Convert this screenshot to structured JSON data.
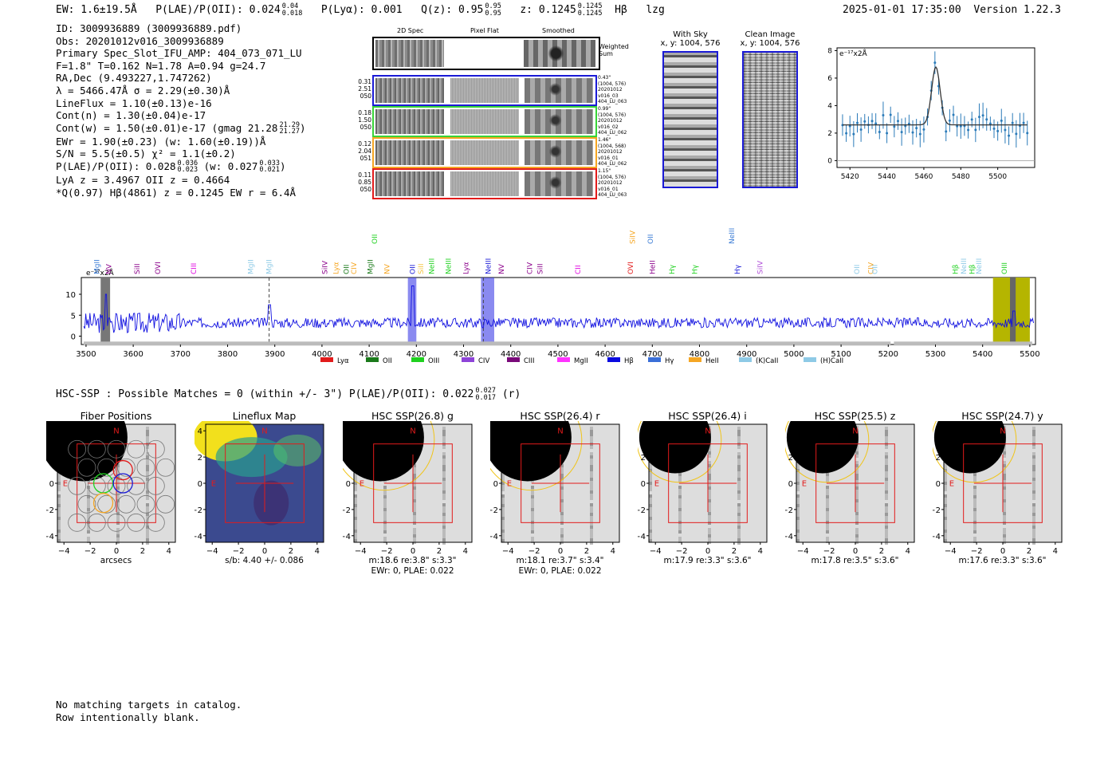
{
  "header": {
    "ew": "EW: 1.6±19.5Å",
    "plae_label": "P(LAE)/P(OII): 0.024",
    "plae_hi": "0.04",
    "plae_lo": "0.018",
    "plya": "P(Lyα): 0.001",
    "qz_label": "Q(z): 0.95",
    "qz_hi": "0.95",
    "qz_lo": "0.95",
    "z_label": "z: 0.1245",
    "z_hi": "0.1245",
    "z_lo": "0.1245",
    "line": "Hβ",
    "tag": "lzg",
    "datetime": "2025-01-01 17:35:00",
    "version": "Version 1.22.3"
  },
  "info": {
    "l1": "ID: 3009936889 (3009936889.pdf)",
    "l2": "Obs: 20201012v016_3009936889",
    "l3": "Primary Spec_Slot_IFU_AMP: 404_073_071_LU",
    "l4": "F=1.8\"  T=0.162  N=1.78  A=0.94  g=24.7",
    "l5": "RA,Dec (9.493227,1.747262)",
    "l6": "λ = 5466.47Å  σ = 2.29(±0.30)Å",
    "l7": "LineFlux = 1.10(±0.13)e-16",
    "l8": "Cont(n) = 1.30(±0.04)e-17",
    "l9": "Cont(w) = 1.50(±0.01)e-17 (gmag 21.28",
    "l9_hi": "21.29",
    "l9_lo": "21.27",
    "l10": "EWr = 1.90(±0.23) (w: 1.60(±0.19))Å",
    "l11": "S/N = 5.5(±0.5)  χ² = 1.1(±0.2)",
    "l12": "P(LAE)/P(OII): 0.028",
    "l12_hi": "0.036",
    "l12_lo": "0.023",
    "l12b": "(w: 0.027",
    "l12b_hi": "0.033",
    "l12b_lo": "0.021",
    "l13": "LyA z = 3.4967  OII z = 0.4664",
    "l14": "*Q(0.97) Hβ(4861) z = 0.1245  EW r = 6.4Å"
  },
  "cutouts": {
    "col1": "2D Spec",
    "col2": "Pixel Flat",
    "col3": "Smoothed",
    "weighted": "Weighted Sum",
    "rows": [
      {
        "left": [
          "0.31",
          "2.51",
          "050"
        ],
        "right": [
          "0.43\"",
          "(1004, 576)",
          "20201012",
          "v016_03",
          "404_LU_063"
        ],
        "color": "#1a1ad6"
      },
      {
        "left": [
          "0.18",
          "1.50",
          "050"
        ],
        "right": [
          "0.99\"",
          "(1004, 576)",
          "20201012",
          "v016_02",
          "404_LU_062"
        ],
        "color": "#37d437"
      },
      {
        "left": [
          "0.12",
          "2.04",
          "051"
        ],
        "right": [
          "1.46\"",
          "(1004, 568)",
          "20201012",
          "v016_01",
          "404_LU_062"
        ],
        "color": "#f5a623"
      },
      {
        "left": [
          "0.11",
          "0.85",
          "050"
        ],
        "right": [
          "1.15\"",
          "(1004, 576)",
          "20201012",
          "v016_01",
          "404_LU_063"
        ],
        "color": "#e21b1b"
      }
    ]
  },
  "sky": {
    "with_sky_title": "With Sky",
    "with_sky_sub": "x, y: 1004, 576",
    "clean_title": "Clean Image",
    "clean_sub": "x, y: 1004, 576"
  },
  "zoom_plot": {
    "unit": "e⁻¹⁷x2Å",
    "xticks": [
      "5420",
      "5440",
      "5460",
      "5480",
      "5500"
    ],
    "yticks": [
      "0",
      "2",
      "4",
      "6",
      "8"
    ]
  },
  "full_spec": {
    "unit": "e⁻¹⁷x2Å",
    "xticks": [
      "3500",
      "3600",
      "3700",
      "3800",
      "3900",
      "4000",
      "4100",
      "4200",
      "4300",
      "4400",
      "4500",
      "4600",
      "4700",
      "4800",
      "4900",
      "5000",
      "5100",
      "5200",
      "5300",
      "5400",
      "5500"
    ],
    "yticks": [
      "10",
      "5",
      "0"
    ],
    "line_labels": [
      {
        "t": "MgII",
        "w": 3523,
        "c": "#3a7bd5",
        "row": 0
      },
      {
        "t": "NV",
        "w": 3548,
        "c": "#8b008b",
        "row": 0
      },
      {
        "t": "SiII",
        "w": 3608,
        "c": "#8b008b",
        "row": 0
      },
      {
        "t": "OVI",
        "w": 3652,
        "c": "#8b008b",
        "row": 0
      },
      {
        "t": "CIII",
        "w": 3728,
        "c": "#e000e0",
        "row": 0
      },
      {
        "t": "MgII",
        "w": 3849,
        "c": "#8ecae6",
        "row": 0
      },
      {
        "t": "MgII",
        "w": 3888,
        "c": "#8ecae6",
        "row": 0
      },
      {
        "t": "SiIV",
        "w": 4006,
        "c": "#8b008b",
        "row": 0
      },
      {
        "t": "Lyα",
        "w": 4030,
        "c": "#f5a623",
        "row": 0
      },
      {
        "t": "OII",
        "w": 4052,
        "c": "#1b7a1b",
        "row": 0
      },
      {
        "t": "CIV",
        "w": 4068,
        "c": "#f5a623",
        "row": 0
      },
      {
        "t": "MgII",
        "w": 4102,
        "c": "#1b7a1b",
        "row": 0
      },
      {
        "t": "OII",
        "w": 4112,
        "c": "#1fd11f",
        "row": 1
      },
      {
        "t": "NV",
        "w": 4138,
        "c": "#f5a623",
        "row": 0
      },
      {
        "t": "OII",
        "w": 4192,
        "c": "#1a1ad6",
        "row": 0
      },
      {
        "t": "SiII",
        "w": 4210,
        "c": "#f5c542",
        "row": 0
      },
      {
        "t": "NeIII",
        "w": 4232,
        "c": "#1fd11f",
        "row": 0
      },
      {
        "t": "NeIII",
        "w": 4268,
        "c": "#1fd11f",
        "row": 0
      },
      {
        "t": "Lyα",
        "w": 4305,
        "c": "#8b008b",
        "row": 0
      },
      {
        "t": "NeIII",
        "w": 4352,
        "c": "#1a1ad6",
        "row": 0
      },
      {
        "t": "NV",
        "w": 4380,
        "c": "#8b008b",
        "row": 0
      },
      {
        "t": "CIV",
        "w": 4440,
        "c": "#8b008b",
        "row": 0
      },
      {
        "t": "SiII",
        "w": 4462,
        "c": "#8b008b",
        "row": 0
      },
      {
        "t": "CII",
        "w": 4542,
        "c": "#e000e0",
        "row": 0
      },
      {
        "t": "OVI",
        "w": 4654,
        "c": "#e21b1b",
        "row": 0
      },
      {
        "t": "SiIV",
        "w": 4658,
        "c": "#f5a623",
        "row": 1
      },
      {
        "t": "OII",
        "w": 4696,
        "c": "#3a7bd5",
        "row": 1
      },
      {
        "t": "HeII",
        "w": 4700,
        "c": "#8b008b",
        "row": 0
      },
      {
        "t": "Hγ",
        "w": 4742,
        "c": "#1fd11f",
        "row": 0
      },
      {
        "t": "Hγ",
        "w": 4790,
        "c": "#1fd11f",
        "row": 0
      },
      {
        "t": "NeIII",
        "w": 4868,
        "c": "#3a7bd5",
        "row": 1
      },
      {
        "t": "Hγ",
        "w": 4880,
        "c": "#1a1ad6",
        "row": 0
      },
      {
        "t": "SiIV",
        "w": 4928,
        "c": "#b04fd8",
        "row": 0
      },
      {
        "t": "OII",
        "w": 5134,
        "c": "#8ecae6",
        "row": 0
      },
      {
        "t": "CIV",
        "w": 5163,
        "c": "#f5a623",
        "row": 0
      },
      {
        "t": "OII",
        "w": 5172,
        "c": "#8ecae6",
        "row": 0
      },
      {
        "t": "Hβ",
        "w": 5342,
        "c": "#1fd11f",
        "row": 0
      },
      {
        "t": "NeIII",
        "w": 5360,
        "c": "#8ecae6",
        "row": 0
      },
      {
        "t": "Hβ",
        "w": 5378,
        "c": "#1fd11f",
        "row": 0
      },
      {
        "t": "NeIII",
        "w": 5392,
        "c": "#8ecae6",
        "row": 0
      },
      {
        "t": "OIII",
        "w": 5446,
        "c": "#1fd11f",
        "row": 0
      }
    ],
    "legend": [
      {
        "label": "Lyα",
        "color": "#e21b1b"
      },
      {
        "label": "OII",
        "color": "#1b7a1b"
      },
      {
        "label": "OIII",
        "color": "#1fd11f"
      },
      {
        "label": "CIV",
        "color": "#8e44d8"
      },
      {
        "label": "CIII",
        "color": "#7a0a7a"
      },
      {
        "label": "MgII",
        "color": "#ff33ff"
      },
      {
        "label": "Hβ",
        "color": "#0a0ae0"
      },
      {
        "label": "Hγ",
        "color": "#3a6fd8"
      },
      {
        "label": "HeII",
        "color": "#f5a623"
      },
      {
        "label": "(K)CaII",
        "color": "#8ecae6"
      },
      {
        "label": "(H)CaII",
        "color": "#8ecae6"
      }
    ]
  },
  "hsc": {
    "summary": "HSC-SSP : Possible Matches = 0 (within +/- 3\")  P(LAE)/P(OII): 0.022",
    "summary_hi": "0.027",
    "summary_lo": "0.017",
    "summary_tail": "(r)",
    "panels": [
      {
        "title": "Fiber Positions",
        "cap1": "arcsecs",
        "cap2": ""
      },
      {
        "title": "Lineflux Map",
        "cap1": "s/b: 4.40 +/- 0.086",
        "cap2": ""
      },
      {
        "title": "HSC SSP(26.8) g",
        "cap1": "m:18.6  re:3.8\"  s:3.3\"",
        "cap2": "EWr: 0, PLAE: 0.022"
      },
      {
        "title": "HSC SSP(26.4) r",
        "cap1": "m:18.1  re:3.7\"  s:3.4\"",
        "cap2": "EWr: 0, PLAE: 0.022"
      },
      {
        "title": "HSC SSP(26.4) i",
        "cap1": "m:17.9  re:3.3\"  s:3.6\"",
        "cap2": ""
      },
      {
        "title": "HSC SSP(25.5) z",
        "cap1": "m:17.8  re:3.5\"  s:3.6\"",
        "cap2": ""
      },
      {
        "title": "HSC SSP(24.7) y",
        "cap1": "m:17.6  re:3.3\"  s:3.6\"",
        "cap2": ""
      }
    ],
    "yticks": [
      "4",
      "2",
      "0",
      "−2",
      "−4"
    ],
    "xticks": [
      "−4",
      "−2",
      "0",
      "2",
      "4"
    ],
    "n_label": "N",
    "e_label": "E"
  },
  "footer": {
    "l1": "No matching targets in catalog.",
    "l2": "Row intentionally blank."
  }
}
